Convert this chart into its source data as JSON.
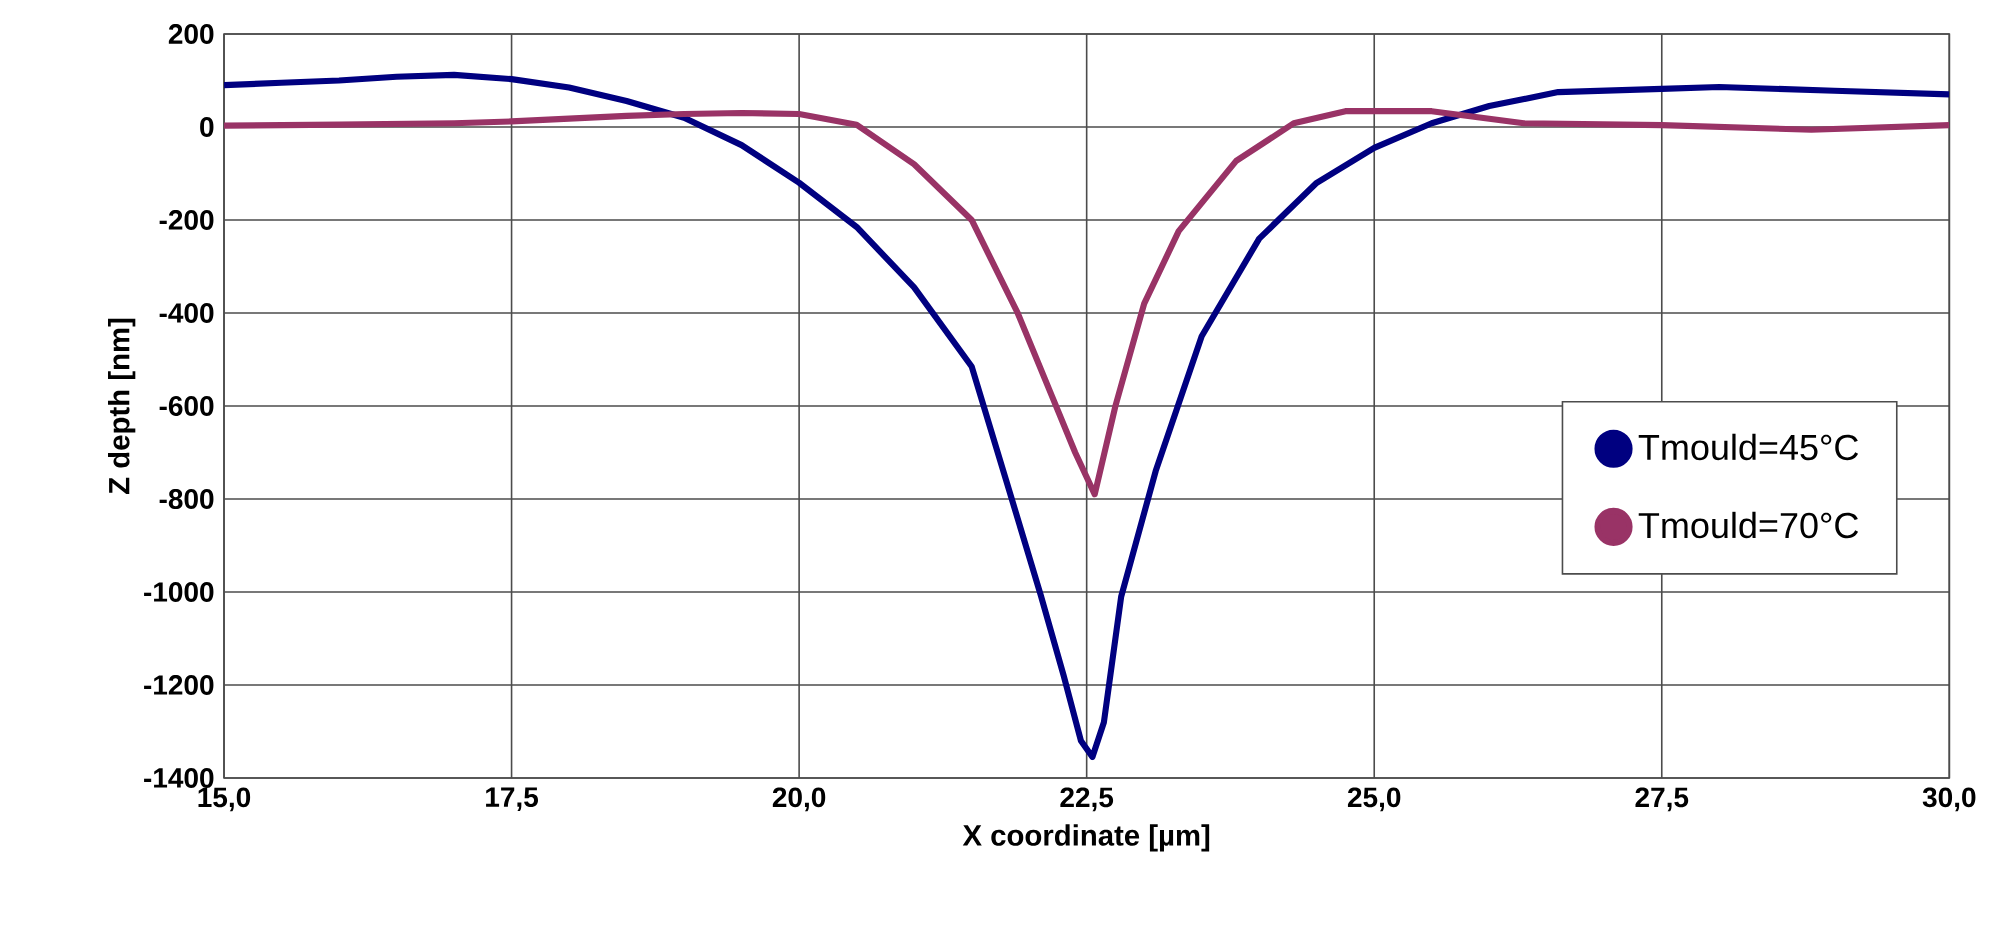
{
  "chart_data": {
    "type": "line",
    "xlabel": "X coordinate [µm]",
    "ylabel": "Z depth [nm]",
    "xlim": [
      15,
      30
    ],
    "ylim": [
      -1400,
      200
    ],
    "xticks": [
      {
        "value": 15,
        "label": "15,0"
      },
      {
        "value": 17.5,
        "label": "17,5"
      },
      {
        "value": 20,
        "label": "20,0"
      },
      {
        "value": 22.5,
        "label": "22,5"
      },
      {
        "value": 25,
        "label": "25,0"
      },
      {
        "value": 27.5,
        "label": "27,5"
      },
      {
        "value": 30,
        "label": "30,0"
      }
    ],
    "yticks": [
      -1400,
      -1200,
      -1000,
      -800,
      -600,
      -400,
      -200,
      0,
      200
    ],
    "grid": true,
    "legend": "right",
    "marker": "none",
    "line_style": "solid",
    "series": [
      {
        "name": "Tmould=45°C",
        "color": "#000080",
        "x": [
          15,
          15.5,
          16,
          16.5,
          17,
          17.5,
          18,
          18.5,
          19,
          19.5,
          20,
          20.5,
          21,
          21.5,
          21.8,
          22.1,
          22.3,
          22.45,
          22.55,
          22.65,
          22.8,
          23.1,
          23.5,
          24,
          24.5,
          25,
          25.5,
          26,
          26.6,
          27.5,
          28,
          29,
          30
        ],
        "values": [
          90,
          95,
          100,
          108,
          112,
          103,
          85,
          56,
          20,
          -39,
          -120,
          -215,
          -345,
          -515,
          -760,
          -1006,
          -1180,
          -1320,
          -1355,
          -1280,
          -1010,
          -740,
          -450,
          -240,
          -120,
          -45,
          8,
          45,
          75,
          82,
          86,
          78,
          70
        ]
      },
      {
        "name": "Tmould=70°C",
        "color": "#993366",
        "x": [
          15,
          16,
          17,
          17.5,
          18,
          18.5,
          19,
          19.5,
          20,
          20.5,
          21,
          21.5,
          21.9,
          22.2,
          22.4,
          22.57,
          22.75,
          23,
          23.3,
          23.8,
          24.3,
          24.75,
          25.5,
          26.3,
          27.5,
          28.8,
          30
        ],
        "values": [
          3,
          5,
          8,
          12,
          18,
          24,
          28,
          30,
          28,
          5,
          -80,
          -200,
          -400,
          -580,
          -700,
          -790,
          -600,
          -380,
          -224,
          -73,
          8,
          34,
          34,
          8,
          4,
          -6,
          4
        ]
      }
    ]
  }
}
